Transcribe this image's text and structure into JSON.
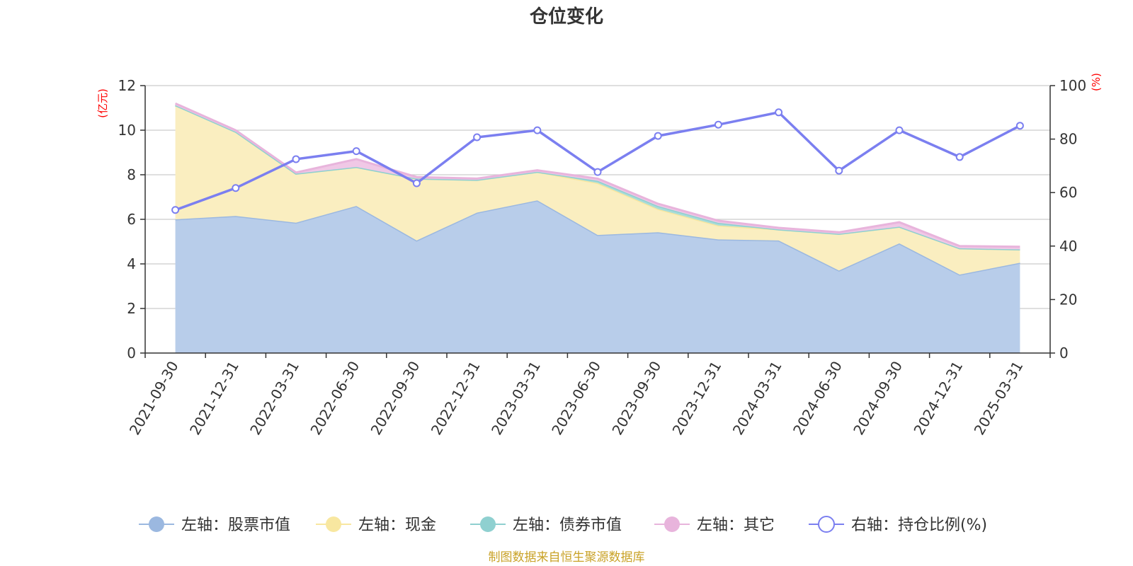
{
  "chart_data": {
    "type": "area",
    "title": "仓位变化",
    "categories": [
      "2021-09-30",
      "2021-12-31",
      "2022-03-31",
      "2022-06-30",
      "2022-09-30",
      "2022-12-31",
      "2023-03-31",
      "2023-06-30",
      "2023-09-30",
      "2023-12-31",
      "2024-03-31",
      "2024-06-30",
      "2024-09-30",
      "2024-12-31",
      "2025-03-31"
    ],
    "left_axis": {
      "unit": "(亿元)",
      "ylim": [
        0,
        12
      ],
      "ticks": [
        "0",
        "2",
        "4",
        "6",
        "8",
        "10",
        "12"
      ]
    },
    "right_axis": {
      "unit": "(%)",
      "ylim": [
        0,
        100
      ],
      "ticks": [
        "0",
        "20",
        "40",
        "60",
        "80",
        "100"
      ]
    },
    "series": [
      {
        "name": "左轴：股票市值",
        "axis": "left",
        "stack": true,
        "color": "#9bb8e0",
        "fill": "#b8cdea",
        "values": [
          6.0,
          6.15,
          5.85,
          6.6,
          5.05,
          6.3,
          6.85,
          5.3,
          5.42,
          5.1,
          5.05,
          3.7,
          4.92,
          3.52,
          4.05
        ]
      },
      {
        "name": "左轴：现金",
        "axis": "left",
        "stack": true,
        "color": "#f8e7a0",
        "fill": "#faeec0",
        "values": [
          5.12,
          3.78,
          2.2,
          1.75,
          2.78,
          1.47,
          1.28,
          2.33,
          1.04,
          0.62,
          0.5,
          1.65,
          0.75,
          1.18,
          0.6
        ]
      },
      {
        "name": "左轴：债券市值",
        "axis": "left",
        "stack": true,
        "color": "#8fd0d0",
        "fill": "#a8dcd8",
        "values": [
          0,
          0,
          0,
          0,
          0,
          0,
          0,
          0.1,
          0.14,
          0.12,
          0,
          0,
          0,
          0,
          0
        ]
      },
      {
        "name": "左轴：其它",
        "axis": "left",
        "stack": true,
        "color": "#e8b4dc",
        "fill": "#f0c8e6",
        "values": [
          0.08,
          0.07,
          0.05,
          0.35,
          0.07,
          0.06,
          0.07,
          0.1,
          0.1,
          0.1,
          0.07,
          0.07,
          0.2,
          0.1,
          0.12
        ]
      },
      {
        "name": "右轴：持仓比例(%)",
        "axis": "right",
        "stack": false,
        "color": "#7b7ff0",
        "values": [
          53.5,
          61.7,
          72.5,
          75.5,
          63.5,
          80.7,
          83.3,
          67.7,
          81.2,
          85.4,
          90.0,
          68.2,
          83.3,
          73.3,
          85.0
        ]
      }
    ],
    "grid": true,
    "legend_position": "bottom"
  },
  "footer": {
    "source": "制图数据来自恒生聚源数据库"
  }
}
